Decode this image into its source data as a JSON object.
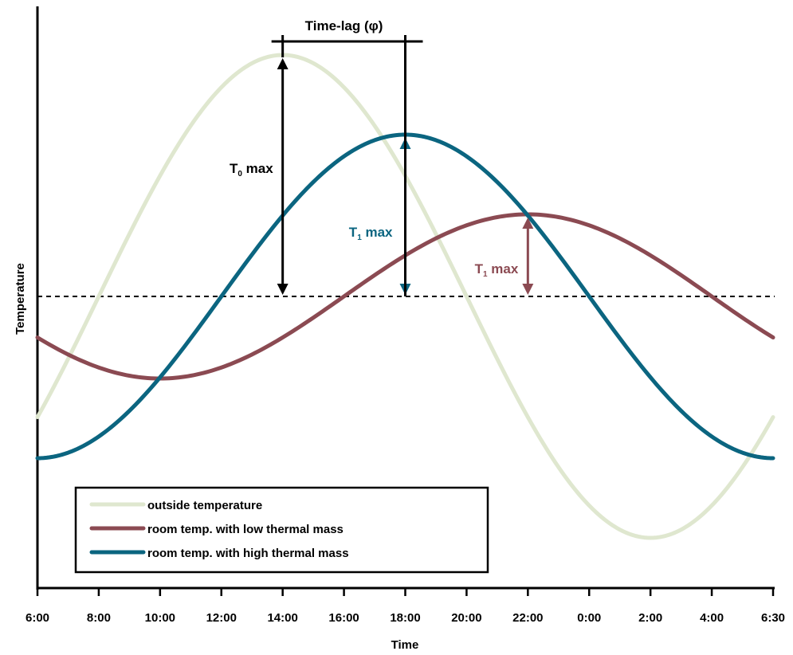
{
  "chart_data": {
    "type": "line",
    "xlabel": "Time",
    "ylabel": "Temperature",
    "x_ticks": [
      "6:00",
      "8:00",
      "10:00",
      "12:00",
      "14:00",
      "16:00",
      "18:00",
      "20:00",
      "22:00",
      "0:00",
      "2:00",
      "4:00",
      "6:30"
    ],
    "x_range_hours": [
      6,
      30
    ],
    "y_range": [
      -1.55,
      1.55
    ],
    "reference_level": 0,
    "grid": false,
    "legend_position": "bottom-left",
    "series": [
      {
        "name": "outside temperature",
        "color": "#dfe7cf",
        "amplitude": 1.0,
        "peak_time": "14:00",
        "x": [
          "6:00",
          "8:00",
          "10:00",
          "12:00",
          "14:00",
          "16:00",
          "18:00",
          "20:00",
          "22:00",
          "0:00",
          "2:00",
          "4:00",
          "6:30"
        ],
        "values": [
          -0.5,
          0.0,
          0.5,
          0.87,
          1.0,
          0.87,
          0.5,
          0.0,
          -0.5,
          -0.87,
          -1.0,
          -0.87,
          -0.5
        ]
      },
      {
        "name": "room temp. with low thermal mass",
        "color": "#8b4a52",
        "amplitude": 0.34,
        "peak_time": "22:00",
        "x": [
          "6:00",
          "8:00",
          "10:00",
          "12:00",
          "14:00",
          "16:00",
          "18:00",
          "20:00",
          "22:00",
          "0:00",
          "2:00",
          "4:00",
          "6:30"
        ],
        "values": [
          -0.17,
          -0.29,
          -0.34,
          -0.29,
          -0.17,
          0.0,
          0.17,
          0.29,
          0.34,
          0.29,
          0.17,
          0.0,
          -0.17
        ]
      },
      {
        "name": "room temp. with high thermal mass",
        "color": "#0b6580",
        "amplitude": 0.67,
        "peak_time": "18:00",
        "x": [
          "6:00",
          "8:00",
          "10:00",
          "12:00",
          "14:00",
          "16:00",
          "18:00",
          "20:00",
          "22:00",
          "0:00",
          "2:00",
          "4:00",
          "6:30"
        ],
        "values": [
          -0.67,
          -0.58,
          -0.34,
          0.0,
          0.34,
          0.58,
          0.67,
          0.58,
          0.34,
          0.0,
          -0.34,
          -0.58,
          -0.67
        ]
      }
    ],
    "annotations": {
      "time_lag": {
        "label": "Time-lag (φ)",
        "from": "14:00",
        "to": "18:00"
      },
      "t0": {
        "label_main": "T",
        "label_sub": "0",
        "label_rest": " max",
        "time": "14:00",
        "series": 0,
        "color": "#000000"
      },
      "t1_high": {
        "label_main": "T",
        "label_sub": "1",
        "label_rest": " max",
        "time": "18:00",
        "series": 2,
        "color": "#0b6580"
      },
      "t1_low": {
        "label_main": "T",
        "label_sub": "1",
        "label_rest": " max",
        "time": "22:00",
        "series": 1,
        "color": "#8b4a52"
      }
    }
  }
}
